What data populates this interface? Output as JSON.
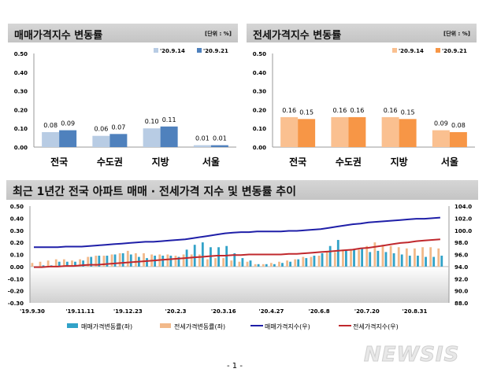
{
  "chart_data": [
    {
      "type": "bar",
      "title": "매매가격지수 변동률",
      "unit": "[단위 : %]",
      "categories": [
        "전국",
        "수도권",
        "지방",
        "서울"
      ],
      "series": [
        {
          "name": "'20.9.14",
          "values": [
            0.08,
            0.06,
            0.1,
            0.01
          ],
          "color": "#b8cce4"
        },
        {
          "name": "'20.9.21",
          "values": [
            0.09,
            0.07,
            0.11,
            0.01
          ],
          "color": "#4f81bd"
        }
      ],
      "ylim": [
        0,
        0.5
      ],
      "yticks": [
        "0.00",
        "0.10",
        "0.20",
        "0.30",
        "0.40",
        "0.50"
      ],
      "legend": "top-right"
    },
    {
      "type": "bar",
      "title": "전세가격지수 변동률",
      "unit": "[단위 : %]",
      "categories": [
        "전국",
        "수도권",
        "지방",
        "서울"
      ],
      "series": [
        {
          "name": "'20.9.14",
          "values": [
            0.16,
            0.16,
            0.16,
            0.09
          ],
          "color": "#fac090"
        },
        {
          "name": "'20.9.21",
          "values": [
            0.15,
            0.16,
            0.15,
            0.08
          ],
          "color": "#f79646"
        }
      ],
      "ylim": [
        0,
        0.5
      ],
      "yticks": [
        "0.00",
        "0.10",
        "0.20",
        "0.30",
        "0.40",
        "0.50"
      ],
      "legend": "top-right"
    },
    {
      "type": "bar+line",
      "title": "최근 1년간 전국 아파트 매매 · 전세가격 지수 및 변동률 추이",
      "xticks": [
        "'19.9.30",
        "'19.11.11",
        "'19.12.23",
        "'20.2.3",
        "'20.3.16",
        "'20.4.27",
        "'20.6.8",
        "'20.7.20",
        "'20.8.31"
      ],
      "yticks_left": [
        "0.50",
        "0.40",
        "0.30",
        "0.20",
        "0.10",
        "0.00",
        "-0.10",
        "-0.20",
        "-0.30"
      ],
      "ylim_left": [
        -0.3,
        0.5
      ],
      "yticks_right": [
        "104.0",
        "102.0",
        "100.0",
        "98.0",
        "96.0",
        "94.0",
        "92.0",
        "90.0",
        "88.0"
      ],
      "ylim_right": [
        88,
        104
      ],
      "series": [
        {
          "name": "매매가격변동률(좌)",
          "kind": "bar",
          "axis": "left",
          "color": "#31a2c8",
          "values": [
            0.0,
            0.01,
            0.01,
            0.04,
            0.04,
            0.04,
            0.05,
            0.08,
            0.09,
            0.09,
            0.1,
            0.11,
            0.1,
            0.08,
            0.07,
            0.09,
            0.09,
            0.09,
            0.08,
            0.14,
            0.18,
            0.2,
            0.16,
            0.16,
            0.17,
            0.11,
            0.07,
            0.05,
            0.02,
            0.02,
            0.02,
            0.03,
            0.04,
            0.06,
            0.07,
            0.09,
            0.11,
            0.17,
            0.22,
            0.13,
            0.14,
            0.15,
            0.12,
            0.13,
            0.12,
            0.11,
            0.1,
            0.09,
            0.09,
            0.08,
            0.08,
            0.09
          ]
        },
        {
          "name": "전세가격변동률(좌)",
          "kind": "bar",
          "axis": "left",
          "color": "#f2b98a",
          "values": [
            0.03,
            0.04,
            0.05,
            0.06,
            0.06,
            0.05,
            0.06,
            0.08,
            0.09,
            0.09,
            0.1,
            0.11,
            0.13,
            0.11,
            0.11,
            0.1,
            0.1,
            0.1,
            0.09,
            0.1,
            0.1,
            0.1,
            0.06,
            0.07,
            0.07,
            0.05,
            0.04,
            0.04,
            0.02,
            0.02,
            0.03,
            0.04,
            0.05,
            0.06,
            0.08,
            0.08,
            0.09,
            0.12,
            0.12,
            0.14,
            0.14,
            0.14,
            0.17,
            0.2,
            0.18,
            0.17,
            0.16,
            0.15,
            0.15,
            0.16,
            0.16,
            0.15
          ]
        },
        {
          "name": "매매가격지수(우)",
          "kind": "line",
          "axis": "right",
          "color": "#1f1fa8",
          "values": [
            97.2,
            97.2,
            97.2,
            97.2,
            97.3,
            97.3,
            97.3,
            97.4,
            97.5,
            97.6,
            97.7,
            97.8,
            97.9,
            98.0,
            98.1,
            98.1,
            98.2,
            98.3,
            98.4,
            98.5,
            98.7,
            98.9,
            99.1,
            99.3,
            99.5,
            99.6,
            99.7,
            99.7,
            99.8,
            99.8,
            99.8,
            99.8,
            99.9,
            99.9,
            100.0,
            100.1,
            100.2,
            100.4,
            100.6,
            100.8,
            101.0,
            101.1,
            101.3,
            101.4,
            101.5,
            101.6,
            101.7,
            101.8,
            101.9,
            101.9,
            102.0,
            102.1
          ]
        },
        {
          "name": "전세가격지수(우)",
          "kind": "line",
          "axis": "right",
          "color": "#c0282d",
          "values": [
            93.9,
            93.9,
            94.0,
            94.0,
            94.1,
            94.1,
            94.2,
            94.3,
            94.3,
            94.4,
            94.5,
            94.6,
            94.7,
            94.8,
            94.9,
            95.0,
            95.1,
            95.2,
            95.3,
            95.4,
            95.5,
            95.6,
            95.7,
            95.8,
            95.8,
            95.9,
            95.9,
            96.0,
            96.0,
            96.0,
            96.0,
            96.0,
            96.1,
            96.1,
            96.2,
            96.3,
            96.4,
            96.5,
            96.6,
            96.7,
            96.8,
            97.0,
            97.1,
            97.3,
            97.5,
            97.7,
            97.9,
            98.0,
            98.2,
            98.3,
            98.4,
            98.5
          ]
        }
      ],
      "legend": "bottom"
    }
  ],
  "watermark": "NEWSIS",
  "page_number": "- 1 -"
}
